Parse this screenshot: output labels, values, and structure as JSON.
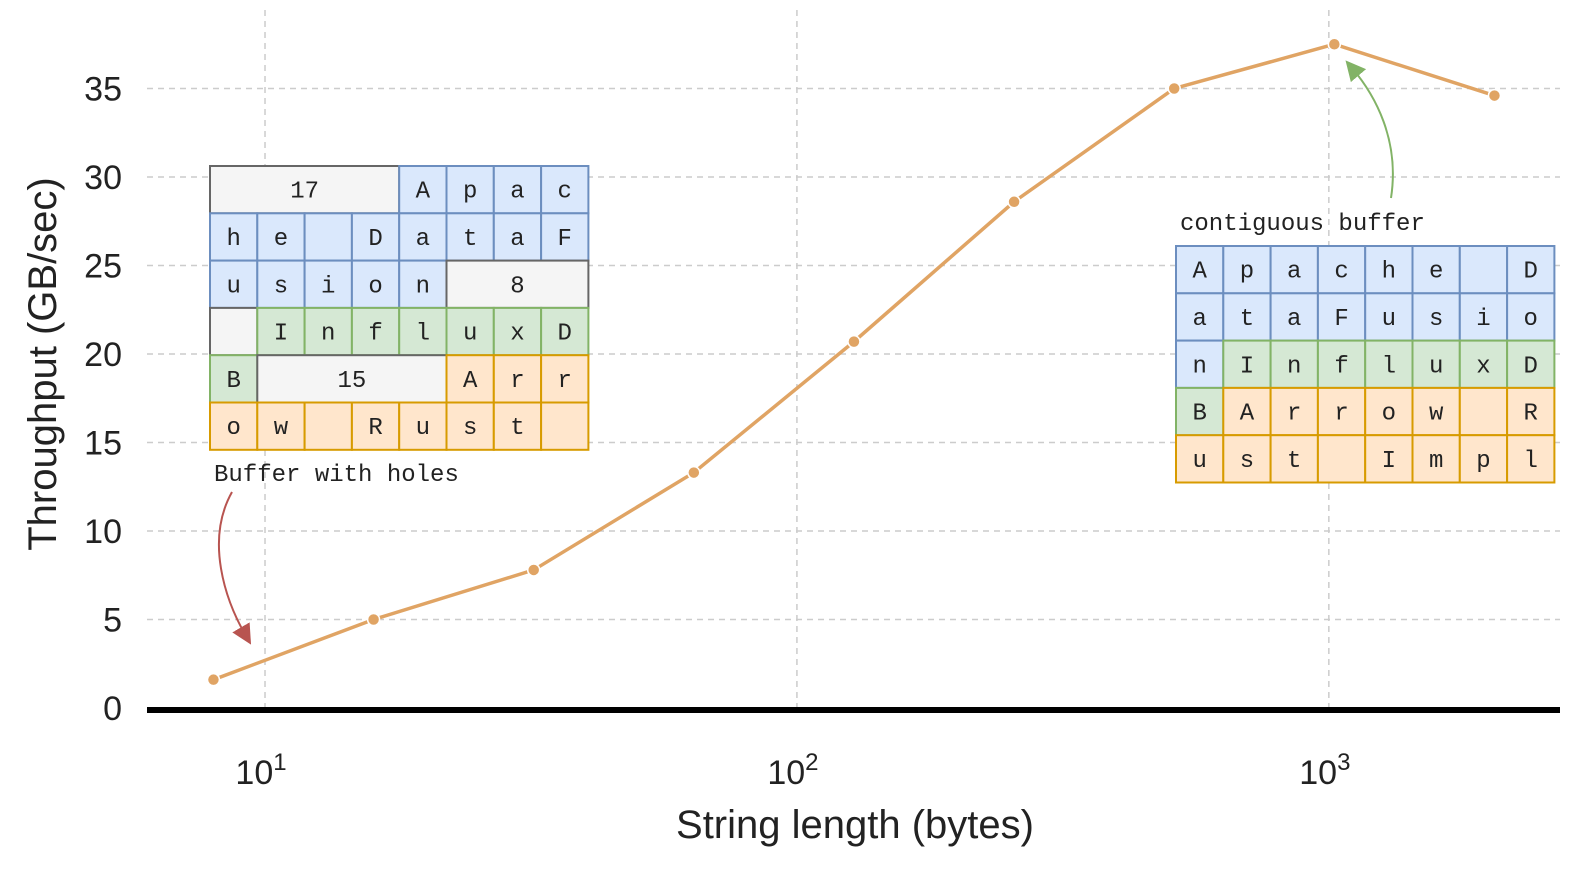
{
  "chart_data": {
    "type": "line",
    "xlabel": "String length (bytes)",
    "ylabel": "Throughput (GB/sec)",
    "x_scale": "log",
    "xlim": [
      6,
      2720
    ],
    "ylim": [
      0,
      40
    ],
    "grid": true,
    "x_ticks": [
      {
        "value": 10,
        "base": "10",
        "exp": "1"
      },
      {
        "value": 100,
        "base": "10",
        "exp": "2"
      },
      {
        "value": 1000,
        "base": "10",
        "exp": "3"
      }
    ],
    "y_ticks": [
      0,
      5,
      10,
      15,
      20,
      25,
      30,
      35
    ],
    "series": [
      {
        "x": [
          8,
          16,
          32,
          64,
          128,
          256,
          512,
          1024,
          2048
        ],
        "y": [
          1.6,
          5.0,
          7.8,
          13.3,
          20.7,
          28.6,
          35.0,
          37.5,
          34.6
        ],
        "color": "#e0a464"
      }
    ],
    "annotations": {
      "holes": {
        "label": "Buffer with holes",
        "arrow_color": "#b85450",
        "rows": [
          [
            {
              "t": "17",
              "s": 4,
              "c": "gray"
            },
            {
              "t": "A",
              "c": "blue"
            },
            {
              "t": "p",
              "c": "blue"
            },
            {
              "t": "a",
              "c": "blue"
            },
            {
              "t": "c",
              "c": "blue"
            }
          ],
          [
            {
              "t": "h",
              "c": "blue"
            },
            {
              "t": "e",
              "c": "blue"
            },
            {
              "t": "",
              "c": "blue"
            },
            {
              "t": "D",
              "c": "blue"
            },
            {
              "t": "a",
              "c": "blue"
            },
            {
              "t": "t",
              "c": "blue"
            },
            {
              "t": "a",
              "c": "blue"
            },
            {
              "t": "F",
              "c": "blue"
            }
          ],
          [
            {
              "t": "u",
              "c": "blue"
            },
            {
              "t": "s",
              "c": "blue"
            },
            {
              "t": "i",
              "c": "blue"
            },
            {
              "t": "o",
              "c": "blue"
            },
            {
              "t": "n",
              "c": "blue"
            },
            {
              "t": "8",
              "s": 3,
              "c": "gray"
            }
          ],
          [
            {
              "t": "",
              "c": "gray"
            },
            {
              "t": "I",
              "c": "green"
            },
            {
              "t": "n",
              "c": "green"
            },
            {
              "t": "f",
              "c": "green"
            },
            {
              "t": "l",
              "c": "green"
            },
            {
              "t": "u",
              "c": "green"
            },
            {
              "t": "x",
              "c": "green"
            },
            {
              "t": "D",
              "c": "green"
            }
          ],
          [
            {
              "t": "B",
              "c": "green"
            },
            {
              "t": "15",
              "s": 4,
              "c": "gray"
            },
            {
              "t": "A",
              "c": "orange"
            },
            {
              "t": "r",
              "c": "orange"
            },
            {
              "t": "r",
              "c": "orange"
            }
          ],
          [
            {
              "t": "o",
              "c": "orange"
            },
            {
              "t": "w",
              "c": "orange"
            },
            {
              "t": "",
              "c": "orange"
            },
            {
              "t": "R",
              "c": "orange"
            },
            {
              "t": "u",
              "c": "orange"
            },
            {
              "t": "s",
              "c": "orange"
            },
            {
              "t": "t",
              "c": "orange"
            },
            {
              "t": "",
              "c": "orange"
            }
          ]
        ]
      },
      "contiguous": {
        "label": "contiguous buffer",
        "arrow_color": "#82b366",
        "rows": [
          [
            {
              "t": "A",
              "c": "blue"
            },
            {
              "t": "p",
              "c": "blue"
            },
            {
              "t": "a",
              "c": "blue"
            },
            {
              "t": "c",
              "c": "blue"
            },
            {
              "t": "h",
              "c": "blue"
            },
            {
              "t": "e",
              "c": "blue"
            },
            {
              "t": "",
              "c": "blue"
            },
            {
              "t": "D",
              "c": "blue"
            }
          ],
          [
            {
              "t": "a",
              "c": "blue"
            },
            {
              "t": "t",
              "c": "blue"
            },
            {
              "t": "a",
              "c": "blue"
            },
            {
              "t": "F",
              "c": "blue"
            },
            {
              "t": "u",
              "c": "blue"
            },
            {
              "t": "s",
              "c": "blue"
            },
            {
              "t": "i",
              "c": "blue"
            },
            {
              "t": "o",
              "c": "blue"
            }
          ],
          [
            {
              "t": "n",
              "c": "blue"
            },
            {
              "t": "I",
              "c": "green"
            },
            {
              "t": "n",
              "c": "green"
            },
            {
              "t": "f",
              "c": "green"
            },
            {
              "t": "l",
              "c": "green"
            },
            {
              "t": "u",
              "c": "green"
            },
            {
              "t": "x",
              "c": "green"
            },
            {
              "t": "D",
              "c": "green"
            }
          ],
          [
            {
              "t": "B",
              "c": "green"
            },
            {
              "t": "A",
              "c": "orange"
            },
            {
              "t": "r",
              "c": "orange"
            },
            {
              "t": "r",
              "c": "orange"
            },
            {
              "t": "o",
              "c": "orange"
            },
            {
              "t": "w",
              "c": "orange"
            },
            {
              "t": "",
              "c": "orange"
            },
            {
              "t": "R",
              "c": "orange"
            }
          ],
          [
            {
              "t": "u",
              "c": "orange"
            },
            {
              "t": "s",
              "c": "orange"
            },
            {
              "t": "t",
              "c": "orange"
            },
            {
              "t": "",
              "c": "orange"
            },
            {
              "t": "I",
              "c": "orange"
            },
            {
              "t": "m",
              "c": "orange"
            },
            {
              "t": "p",
              "c": "orange"
            },
            {
              "t": "l",
              "c": "orange"
            }
          ]
        ]
      }
    },
    "cell_colors": {
      "blue": {
        "fill": "#dae8fc",
        "stroke": "#6c8ebf"
      },
      "green": {
        "fill": "#d5e8d4",
        "stroke": "#82b366"
      },
      "orange": {
        "fill": "#ffe6cc",
        "stroke": "#d79b00"
      },
      "gray": {
        "fill": "#f5f5f5",
        "stroke": "#666666"
      }
    }
  }
}
